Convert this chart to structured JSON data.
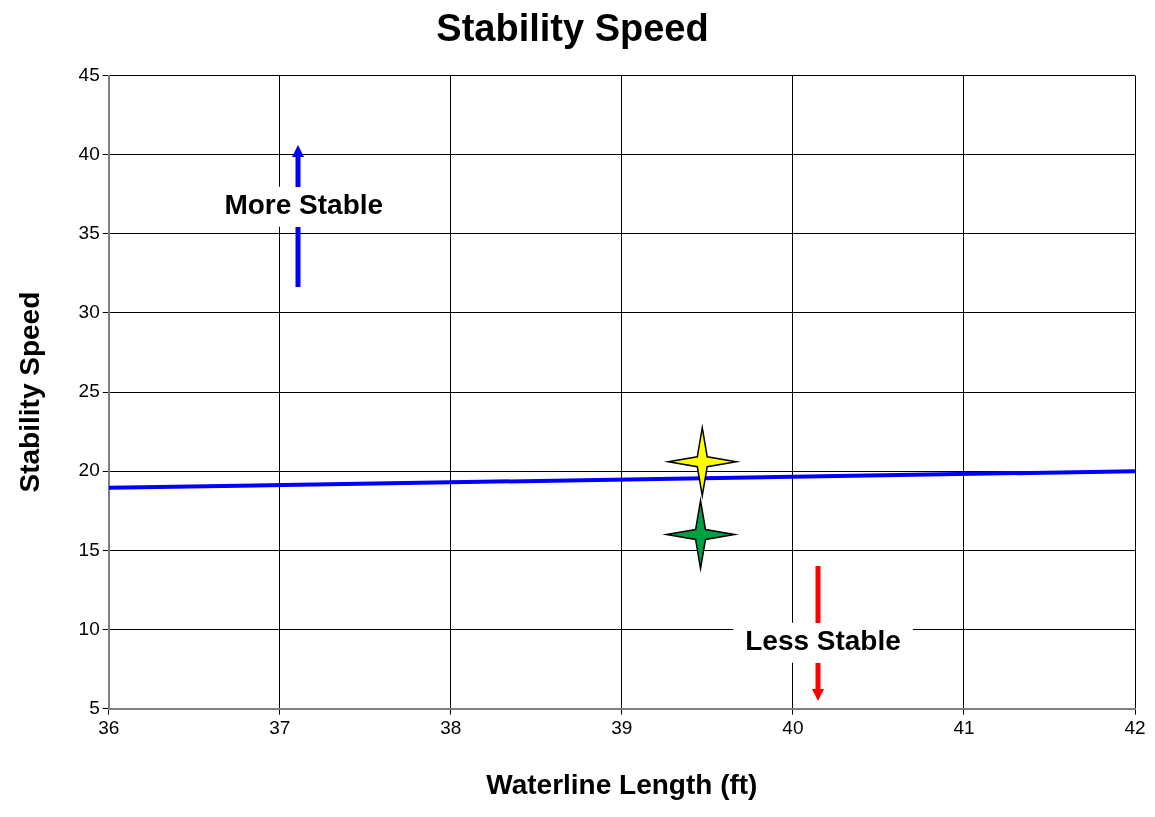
{
  "chart_data": {
    "type": "line",
    "title": "Stability Speed",
    "xlabel": "Waterline Length (ft)",
    "ylabel": "Stability Speed",
    "xlim": [
      36,
      42
    ],
    "xticks": [
      36,
      37,
      38,
      39,
      40,
      41,
      42
    ],
    "ylim": [
      5,
      45
    ],
    "yticks": [
      5,
      10,
      15,
      20,
      25,
      30,
      35,
      40,
      45
    ],
    "grid": true,
    "legend": false,
    "series": [
      {
        "type": "line",
        "color": "#0000ff",
        "x": [
          36,
          42
        ],
        "values": [
          18.95,
          20.0
        ],
        "marker": "none"
      },
      {
        "type": "scatter",
        "color": "#ffff00",
        "x": [
          39.47
        ],
        "values": [
          20.6
        ],
        "marker": "star"
      },
      {
        "type": "scatter",
        "color": "#00a040",
        "x": [
          39.46
        ],
        "values": [
          16.0
        ],
        "marker": "star"
      }
    ],
    "annotations": [
      "More Stable",
      "Less Stable"
    ]
  }
}
